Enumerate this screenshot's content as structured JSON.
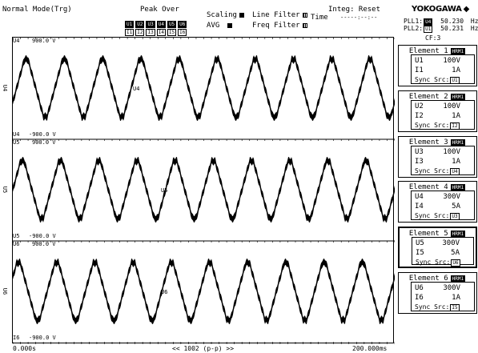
{
  "header": {
    "mode": "Normal Mode(Trg)",
    "peak_over_label": "Peak Over",
    "peak_u": [
      "U1",
      "U2",
      "U3",
      "U4",
      "U5",
      "U6"
    ],
    "peak_i": [
      "I1",
      "I2",
      "I3",
      "I4",
      "I5",
      "I6"
    ],
    "scaling_label": "Scaling",
    "avg_label": "AVG",
    "line_filter_label": "Line Filter",
    "freq_filter_label": "Freq Filter",
    "integ_label": "Integ: Reset",
    "time_label": "Time",
    "time_value": "-----:--:--",
    "brand": "YOKOGAWA",
    "pll1_label": "PLL1:",
    "pll1_src": "U4",
    "pll1_value": "50.230",
    "pll1_unit": "Hz",
    "pll2_label": "PLL2:",
    "pll2_src": "U1",
    "pll2_value": "50.231",
    "pll2_unit": "Hz",
    "cf": "CF:3"
  },
  "plot": {
    "traces": [
      {
        "name": "U4",
        "top_label": "U4",
        "top_value": "900.0 V",
        "bottom_label": "U4",
        "bottom_value": "-900.0 V",
        "marker": "U4",
        "left_marker": "U4"
      },
      {
        "name": "U5",
        "top_label": "U5",
        "top_value": "900.0 V",
        "bottom_label": "U5",
        "bottom_value": "-900.0 V",
        "marker": "U5",
        "left_marker": "U5"
      },
      {
        "name": "I6",
        "top_label": "U6",
        "top_value": "900.0 V",
        "bottom_label": "I6",
        "bottom_value": "-900.0 V",
        "marker": "U6",
        "left_marker": "U6"
      }
    ],
    "time_start": "0.000s",
    "time_end": "200.000ms",
    "center_label": "<< 1002 (p-p) >>"
  },
  "elements": [
    {
      "title": "Element 1",
      "badge": "HRM1",
      "u_label": "U1",
      "u_range": "100V",
      "i_label": "I1",
      "i_range": "1A",
      "sync_label": "Sync Src:",
      "sync_src": "U1",
      "highlight": false
    },
    {
      "title": "Element 2",
      "badge": "HRM1",
      "u_label": "U2",
      "u_range": "100V",
      "i_label": "I2",
      "i_range": "1A",
      "sync_label": "Sync Src:",
      "sync_src": "I2",
      "highlight": false
    },
    {
      "title": "Element 3",
      "badge": "HRM1",
      "u_label": "U3",
      "u_range": "100V",
      "i_label": "I3",
      "i_range": "1A",
      "sync_label": "Sync Src:",
      "sync_src": "U4",
      "highlight": false
    },
    {
      "title": "Element 4",
      "badge": "HRM1",
      "u_label": "U4",
      "u_range": "300V",
      "i_label": "I4",
      "i_range": "5A",
      "sync_label": "Sync Src:",
      "sync_src": "U3",
      "highlight": false
    },
    {
      "title": "Element 5",
      "badge": "HRM1",
      "u_label": "U5",
      "u_range": "300V",
      "i_label": "I5",
      "i_range": "5A",
      "sync_label": "Sync Src:",
      "sync_src": "U6",
      "highlight": true
    },
    {
      "title": "Element 6",
      "badge": "HRM1",
      "u_label": "U6",
      "u_range": "300V",
      "i_label": "I6",
      "i_range": "1A",
      "sync_label": "Sync Src:",
      "sync_src": "I5",
      "highlight": false
    }
  ]
}
